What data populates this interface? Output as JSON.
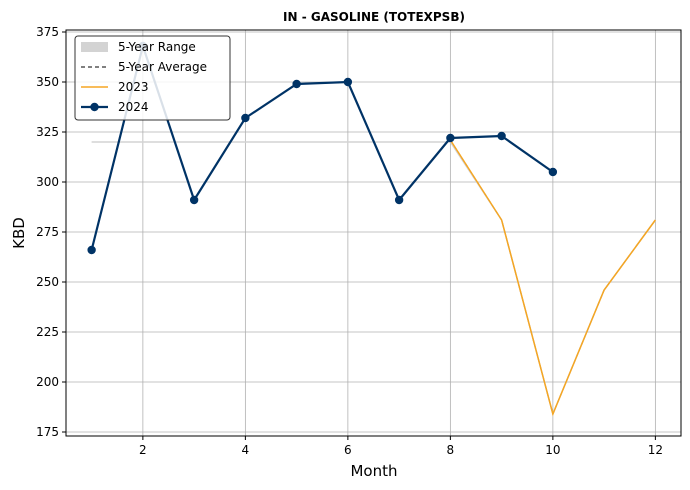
{
  "chart_data": {
    "type": "line",
    "title": "IN - GASOLINE (TOTEXPSB)",
    "xlabel": "Month",
    "ylabel": "KBD",
    "xlim": [
      0.5,
      12.5
    ],
    "ylim": [
      173,
      376
    ],
    "xticks": [
      2,
      4,
      6,
      8,
      10,
      12
    ],
    "yticks": [
      175,
      200,
      225,
      250,
      275,
      300,
      325,
      350,
      375
    ],
    "grid": true,
    "legend_position": "top-left",
    "series": [
      {
        "name": "5-Year Range",
        "style": "band",
        "color": "#d3d3d3",
        "x": [
          1,
          2,
          3,
          4,
          5,
          6,
          7,
          8,
          9,
          10,
          11,
          12
        ],
        "lower": [
          320,
          320,
          320,
          320,
          320,
          320,
          320,
          320,
          281,
          184,
          246,
          281
        ],
        "upper": [
          320,
          320,
          320,
          320,
          320,
          320,
          320,
          320,
          281,
          184,
          246,
          281
        ]
      },
      {
        "name": "5-Year Average",
        "style": "dashed",
        "color": "#000000",
        "x": [
          8,
          9,
          10,
          11,
          12
        ],
        "values": [
          321,
          281,
          184,
          246,
          281
        ]
      },
      {
        "name": "2023",
        "style": "solid",
        "color": "#f5a623",
        "x": [
          8,
          9,
          10,
          11,
          12
        ],
        "values": [
          321,
          281,
          184,
          246,
          281
        ]
      },
      {
        "name": "2024",
        "style": "solid-marker",
        "color": "#003366",
        "x": [
          1,
          2,
          3,
          4,
          5,
          6,
          7,
          8,
          9,
          10
        ],
        "values": [
          266,
          368,
          291,
          332,
          349,
          350,
          291,
          322,
          323,
          305
        ]
      }
    ]
  }
}
